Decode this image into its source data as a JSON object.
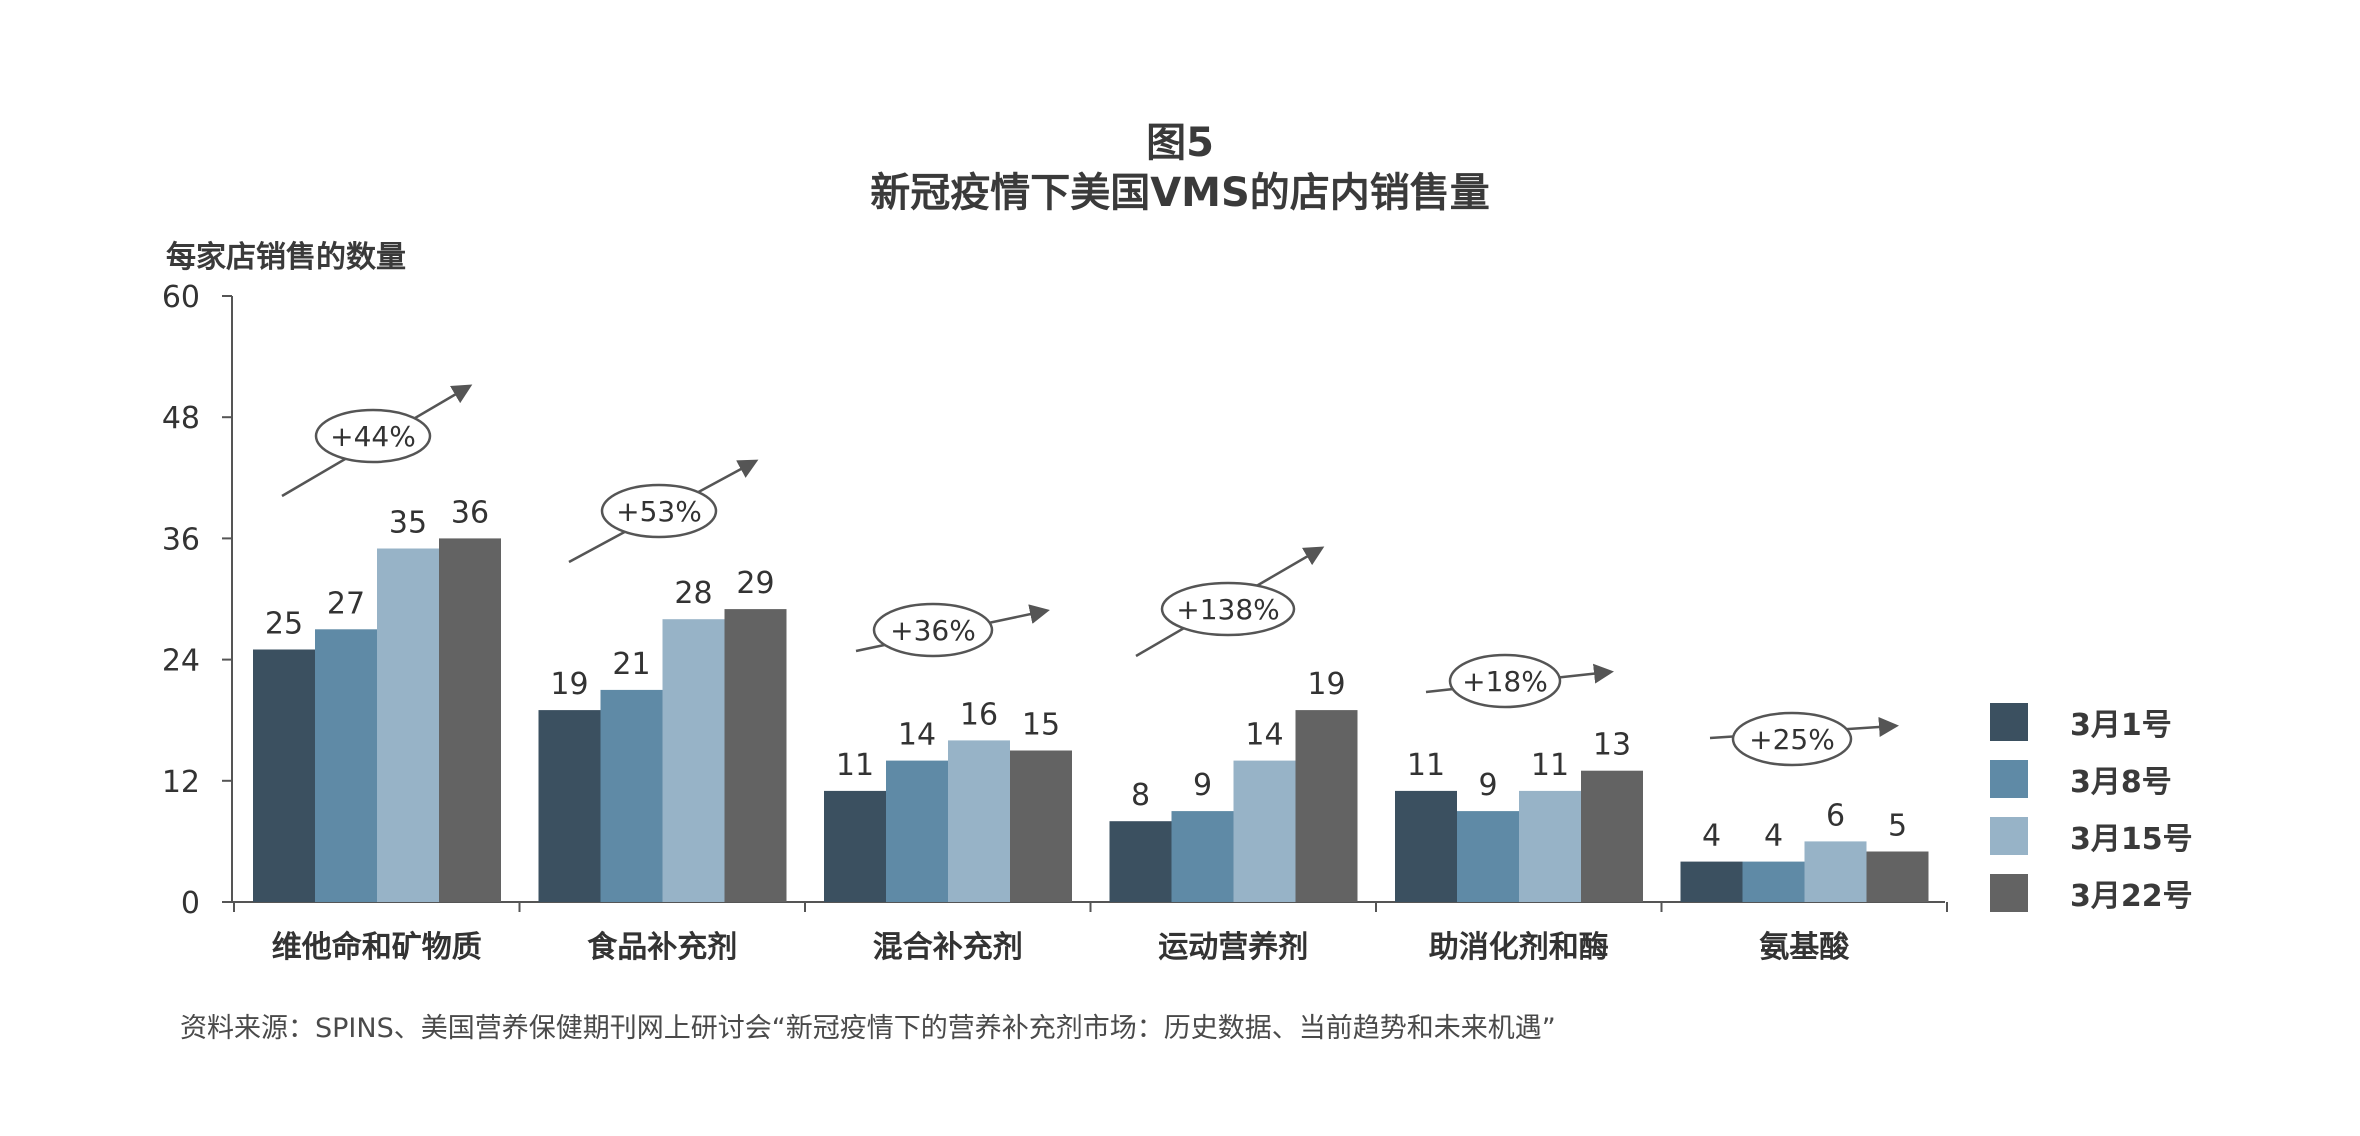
{
  "figure_label": "图5",
  "title": "新冠疫情下美国VMS的店内销售量",
  "y_unit_label": "每家店销售的数量",
  "source_note": "资料来源：SPINS、美国营养保健期刊网上研讨会“新冠疫情下的营养补充剂市场：历史数据、当前趋势和未来机遇”",
  "colors": {
    "series": [
      "#3b5060",
      "#5f8aa6",
      "#97b3c7",
      "#636363"
    ],
    "axis": "#555555"
  },
  "chart_data": {
    "type": "bar",
    "title": "新冠疫情下美国VMS的店内销售量",
    "ylabel": "每家店销售的数量",
    "xlabel": "",
    "ylim": [
      0,
      60
    ],
    "yticks": [
      0,
      12,
      24,
      36,
      48,
      60
    ],
    "grid": false,
    "legend_position": "right",
    "categories": [
      "维他命和矿物质",
      "食品补充剂",
      "混合补充剂",
      "运动营养剂",
      "助消化剂和酶",
      "氨基酸"
    ],
    "series": [
      {
        "name": "3月1号",
        "values": [
          25,
          19,
          11,
          8,
          11,
          4
        ]
      },
      {
        "name": "3月8号",
        "values": [
          27,
          21,
          14,
          9,
          9,
          4
        ]
      },
      {
        "name": "3月15号",
        "values": [
          35,
          28,
          16,
          14,
          11,
          6
        ]
      },
      {
        "name": "3月22号",
        "values": [
          36,
          29,
          15,
          19,
          13,
          5
        ]
      }
    ],
    "annotations": [
      "+44%",
      "+53%",
      "+36%",
      "+138%",
      "+18%",
      "+25%"
    ]
  }
}
